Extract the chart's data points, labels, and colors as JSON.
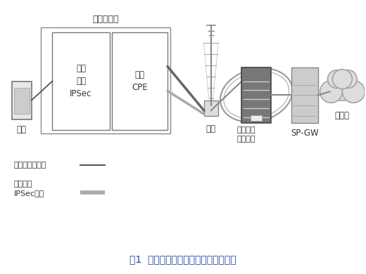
{
  "title": "图1  固定翼式无人机机载系统组网架构",
  "bg_color": "#ffffff",
  "label_shang_feiji": "上飞机设备",
  "label_jizai_jizhan": "机载\n基站\nIPSec",
  "label_huichuan": "回传\nCPE",
  "label_zhongduan": "终端",
  "label_hongzhan": "宏站",
  "label_jizai_anquanwang": "机载基站\n安全网关",
  "label_spgw": "SP-GW",
  "label_hulianwang": "互联网",
  "legend_user_path": "终端用户面路径",
  "legend_ipsec_path": "机载基站\nIPSec路径",
  "gray_color": "#808080",
  "light_gray": "#aaaaaa",
  "dark_gray": "#555555",
  "line_color_user": "#555555",
  "line_color_ipsec": "#aaaaaa"
}
